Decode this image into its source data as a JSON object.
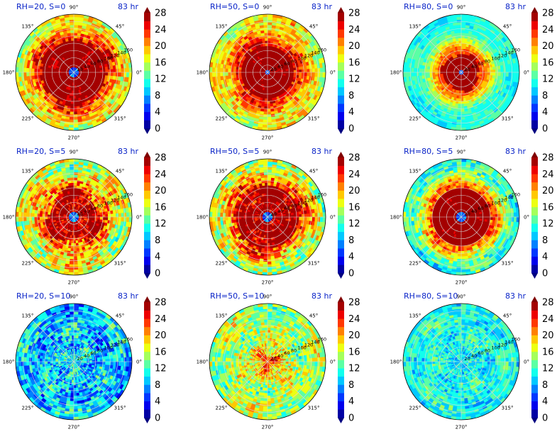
{
  "chart_data": [
    {
      "type": "heatmap",
      "title": "RH=20, S=0",
      "time_label": "83 hr",
      "rh": 20,
      "s": 0,
      "angle_ticks": [
        "0°",
        "45°",
        "90°",
        "135°",
        "180°",
        "225°",
        "270°",
        "315°"
      ],
      "radius_ticks": [
        20,
        40,
        60,
        80,
        100,
        120,
        140,
        160
      ],
      "colorbar": {
        "ticks": [
          0,
          4,
          8,
          12,
          16,
          20,
          24,
          28
        ],
        "min": 0,
        "max": 28,
        "extend": "both",
        "colormap": "jet"
      },
      "field": {
        "eye_radius": 0.08,
        "core_radius": 0.55,
        "core_value": 30,
        "outer_value": 16,
        "variability": 0.35
      }
    },
    {
      "type": "heatmap",
      "title": "RH=50, S=0",
      "time_label": "83 hr",
      "rh": 50,
      "s": 0,
      "angle_ticks": [
        "0°",
        "45°",
        "90°",
        "135°",
        "180°",
        "225°",
        "270°",
        "315°"
      ],
      "radius_ticks": [
        20,
        40,
        60,
        80,
        100,
        120,
        140,
        160
      ],
      "colorbar": {
        "ticks": [
          0,
          4,
          8,
          12,
          16,
          20,
          24,
          28
        ],
        "min": 0,
        "max": 28,
        "extend": "both",
        "colormap": "jet"
      },
      "field": {
        "eye_radius": 0.06,
        "core_radius": 0.45,
        "core_value": 30,
        "outer_value": 17,
        "variability": 0.3
      }
    },
    {
      "type": "heatmap",
      "title": "RH=80, S=0",
      "time_label": "83 hr",
      "rh": 80,
      "s": 0,
      "angle_ticks": [
        "0°",
        "45°",
        "90°",
        "135°",
        "180°",
        "225°",
        "270°",
        "315°"
      ],
      "radius_ticks": [
        20,
        40,
        60,
        80,
        100,
        120,
        140,
        160
      ],
      "colorbar": {
        "ticks": [
          0,
          4,
          8,
          12,
          16,
          20,
          24,
          28
        ],
        "min": 0,
        "max": 28,
        "extend": "both",
        "colormap": "jet"
      },
      "field": {
        "eye_radius": 0.05,
        "core_radius": 0.33,
        "core_value": 30,
        "outer_value": 11,
        "variability": 0.15
      }
    },
    {
      "type": "heatmap",
      "title": "RH=20, S=5",
      "time_label": "83 hr",
      "rh": 20,
      "s": 5,
      "angle_ticks": [
        "0°",
        "45°",
        "90°",
        "135°",
        "180°",
        "225°",
        "270°",
        "315°"
      ],
      "radius_ticks": [
        20,
        40,
        60,
        80,
        100,
        120,
        140,
        160
      ],
      "colorbar": {
        "ticks": [
          0,
          4,
          8,
          12,
          16,
          20,
          24,
          28
        ],
        "min": 0,
        "max": 28,
        "extend": "both",
        "colormap": "jet"
      },
      "field": {
        "eye_radius": 0.08,
        "core_radius": 0.45,
        "core_value": 27,
        "outer_value": 16,
        "variability": 0.4
      }
    },
    {
      "type": "heatmap",
      "title": "RH=50, S=5",
      "time_label": "83 hr",
      "rh": 50,
      "s": 5,
      "angle_ticks": [
        "0°",
        "45°",
        "90°",
        "135°",
        "180°",
        "225°",
        "270°",
        "315°"
      ],
      "radius_ticks": [
        20,
        40,
        60,
        80,
        100,
        120,
        140,
        160
      ],
      "colorbar": {
        "ticks": [
          0,
          4,
          8,
          12,
          16,
          20,
          24,
          28
        ],
        "min": 0,
        "max": 28,
        "extend": "both",
        "colormap": "jet"
      },
      "field": {
        "eye_radius": 0.1,
        "core_radius": 0.55,
        "core_value": 28,
        "outer_value": 15,
        "variability": 0.4
      }
    },
    {
      "type": "heatmap",
      "title": "RH=80, S=5",
      "time_label": "83 hr",
      "rh": 80,
      "s": 5,
      "angle_ticks": [
        "0°",
        "45°",
        "90°",
        "135°",
        "180°",
        "225°",
        "270°",
        "315°"
      ],
      "radius_ticks": [
        20,
        40,
        60,
        80,
        100,
        120,
        140,
        160
      ],
      "colorbar": {
        "ticks": [
          0,
          4,
          8,
          12,
          16,
          20,
          24,
          28
        ],
        "min": 0,
        "max": 28,
        "extend": "both",
        "colormap": "jet"
      },
      "field": {
        "eye_radius": 0.08,
        "core_radius": 0.5,
        "core_value": 30,
        "outer_value": 11,
        "variability": 0.3
      }
    },
    {
      "type": "heatmap",
      "title": "RH=20, S=10",
      "time_label": "83 hr",
      "rh": 20,
      "s": 10,
      "angle_ticks": [
        "0°",
        "45°",
        "90°",
        "135°",
        "180°",
        "225°",
        "270°",
        "315°"
      ],
      "radius_ticks": [
        20,
        40,
        60,
        80,
        100,
        120,
        140,
        160
      ],
      "colorbar": {
        "ticks": [
          0,
          4,
          8,
          12,
          16,
          20,
          24,
          28
        ],
        "min": 0,
        "max": 28,
        "extend": "both",
        "colormap": "jet"
      },
      "field": {
        "eye_radius": 0.0,
        "core_radius": 0.0,
        "core_value": 12,
        "outer_value": 9,
        "variability": 0.4
      }
    },
    {
      "type": "heatmap",
      "title": "RH=50, S=10",
      "time_label": "83 hr",
      "rh": 50,
      "s": 10,
      "angle_ticks": [
        "0°",
        "45°",
        "90°",
        "135°",
        "180°",
        "225°",
        "270°",
        "315°"
      ],
      "radius_ticks": [
        20,
        40,
        60,
        80,
        100,
        120,
        140,
        160
      ],
      "colorbar": {
        "ticks": [
          0,
          4,
          8,
          12,
          16,
          20,
          24,
          28
        ],
        "min": 0,
        "max": 28,
        "extend": "both",
        "colormap": "jet"
      },
      "field": {
        "eye_radius": 0.0,
        "core_radius": 0.12,
        "core_value": 22,
        "outer_value": 15,
        "variability": 0.35
      }
    },
    {
      "type": "heatmap",
      "title": "RH=80, S=10",
      "time_label": "83 hr",
      "rh": 80,
      "s": 10,
      "angle_ticks": [
        "0°",
        "45°",
        "90°",
        "135°",
        "180°",
        "225°",
        "270°",
        "315°"
      ],
      "radius_ticks": [
        20,
        40,
        60,
        80,
        100,
        120,
        140,
        160
      ],
      "colorbar": {
        "ticks": [
          0,
          4,
          8,
          12,
          16,
          20,
          24,
          28
        ],
        "min": 0,
        "max": 28,
        "extend": "both",
        "colormap": "jet"
      },
      "field": {
        "eye_radius": 0.0,
        "core_radius": 0.0,
        "core_value": 9,
        "outer_value": 11,
        "variability": 0.25
      }
    }
  ]
}
